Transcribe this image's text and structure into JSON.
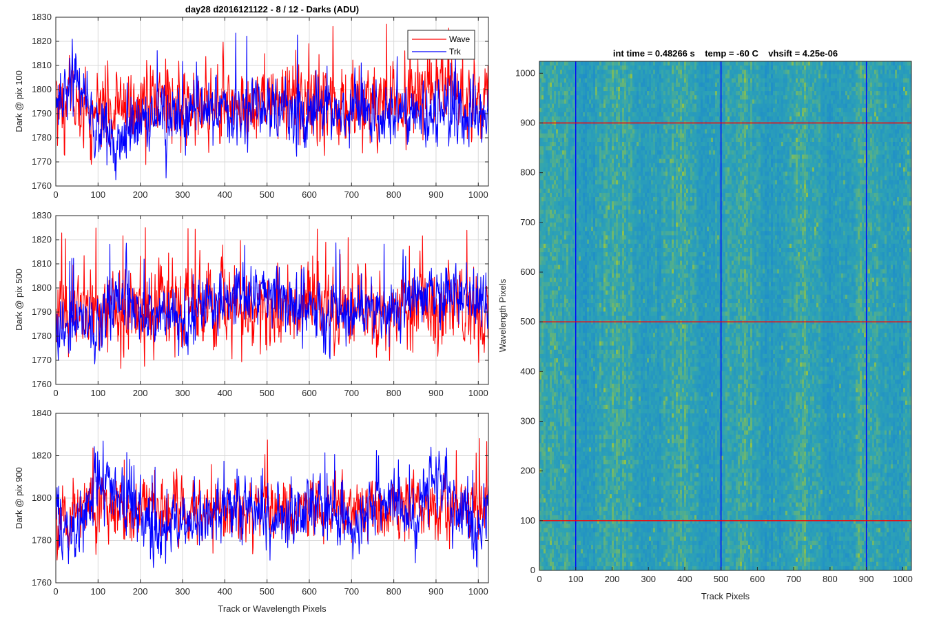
{
  "chart_data": [
    {
      "type": "line",
      "title": "day28 d2016121122 - 8 / 12 - Darks (ADU)",
      "xlabel": "",
      "ylabel": "Dark @ pix 100",
      "xlim": [
        0,
        1024
      ],
      "ylim": [
        1760,
        1830
      ],
      "xticks": [
        "0",
        "100",
        "200",
        "300",
        "400",
        "500",
        "600",
        "700",
        "800",
        "900",
        "1000"
      ],
      "yticks": [
        "1760",
        "1770",
        "1780",
        "1790",
        "1800",
        "1810",
        "1820",
        "1830"
      ],
      "grid": true,
      "legend": {
        "placement": "top-right",
        "entries": [
          "Wave",
          "Trk"
        ]
      },
      "series": [
        {
          "name": "Wave",
          "color": "#ff0000",
          "mean_profile": [
            [
              0,
              1796
            ],
            [
              100,
              1792
            ],
            [
              200,
              1792
            ],
            [
              300,
              1793
            ],
            [
              400,
              1794
            ],
            [
              500,
              1794
            ],
            [
              600,
              1795
            ],
            [
              700,
              1795
            ],
            [
              800,
              1796
            ],
            [
              900,
              1796
            ],
            [
              1024,
              1797
            ]
          ],
          "noise_sd": 8,
          "spike_max": 1828,
          "min": 1764
        },
        {
          "name": "Trk",
          "color": "#0000ff",
          "mean_profile": [
            [
              0,
              1795
            ],
            [
              40,
              1805
            ],
            [
              70,
              1797
            ],
            [
              100,
              1786
            ],
            [
              150,
              1778
            ],
            [
              200,
              1786
            ],
            [
              300,
              1790
            ],
            [
              400,
              1791
            ],
            [
              500,
              1792
            ],
            [
              600,
              1792
            ],
            [
              700,
              1791
            ],
            [
              800,
              1790
            ],
            [
              900,
              1791
            ],
            [
              1024,
              1790
            ]
          ],
          "noise_sd": 6,
          "max": 1824,
          "min": 1762
        }
      ]
    },
    {
      "type": "line",
      "title": "",
      "xlabel": "",
      "ylabel": "Dark @ pix 500",
      "xlim": [
        0,
        1024
      ],
      "ylim": [
        1760,
        1830
      ],
      "xticks": [
        "0",
        "100",
        "200",
        "300",
        "400",
        "500",
        "600",
        "700",
        "800",
        "900",
        "1000"
      ],
      "yticks": [
        "1760",
        "1770",
        "1780",
        "1790",
        "1800",
        "1810",
        "1820",
        "1830"
      ],
      "grid": true,
      "series": [
        {
          "name": "Wave",
          "color": "#ff0000",
          "mean_profile": [
            [
              0,
              1790
            ],
            [
              200,
              1790
            ],
            [
              400,
              1793
            ],
            [
              600,
              1792
            ],
            [
              800,
              1791
            ],
            [
              1024,
              1792
            ]
          ],
          "noise_sd": 8,
          "spike_max": 1825,
          "min": 1764
        },
        {
          "name": "Trk",
          "color": "#0000ff",
          "mean_profile": [
            [
              0,
              1782
            ],
            [
              100,
              1788
            ],
            [
              150,
              1797
            ],
            [
              200,
              1790
            ],
            [
              300,
              1787
            ],
            [
              400,
              1797
            ],
            [
              500,
              1797
            ],
            [
              600,
              1792
            ],
            [
              700,
              1787
            ],
            [
              800,
              1790
            ],
            [
              900,
              1800
            ],
            [
              1024,
              1795
            ]
          ],
          "noise_sd": 6,
          "max": 1819,
          "min": 1762
        }
      ]
    },
    {
      "type": "line",
      "title": "",
      "xlabel": "Track or Wavelength Pixels",
      "ylabel": "Dark @ pix 900",
      "xlim": [
        0,
        1024
      ],
      "ylim": [
        1760,
        1840
      ],
      "xticks": [
        "0",
        "100",
        "200",
        "300",
        "400",
        "500",
        "600",
        "700",
        "800",
        "900",
        "1000"
      ],
      "yticks": [
        "1760",
        "1780",
        "1800",
        "1820",
        "1840"
      ],
      "grid": true,
      "series": [
        {
          "name": "Wave",
          "color": "#ff0000",
          "mean_profile": [
            [
              0,
              1795
            ],
            [
              200,
              1793
            ],
            [
              400,
              1794
            ],
            [
              600,
              1795
            ],
            [
              800,
              1795
            ],
            [
              1024,
              1794
            ]
          ],
          "noise_sd": 7,
          "spike_max": 1837,
          "min": 1768
        },
        {
          "name": "Trk",
          "color": "#0000ff",
          "mean_profile": [
            [
              0,
              1795
            ],
            [
              50,
              1780
            ],
            [
              100,
              1808
            ],
            [
              150,
              1803
            ],
            [
              200,
              1788
            ],
            [
              300,
              1787
            ],
            [
              400,
              1795
            ],
            [
              450,
              1800
            ],
            [
              500,
              1790
            ],
            [
              600,
              1797
            ],
            [
              700,
              1786
            ],
            [
              800,
              1802
            ],
            [
              850,
              1790
            ],
            [
              900,
              1815
            ],
            [
              950,
              1795
            ],
            [
              1000,
              1785
            ],
            [
              1024,
              1800
            ]
          ],
          "noise_sd": 7,
          "max": 1828,
          "min": 1762
        }
      ]
    },
    {
      "type": "heatmap",
      "title": "int time = 0.48266 s    temp = -60 C    vhsift = 4.25e-06",
      "xlabel": "Track Pixels",
      "ylabel": "Wavelength Pixels",
      "xlim": [
        0,
        1024
      ],
      "ylim": [
        0,
        1024
      ],
      "xticks": [
        "0",
        "100",
        "200",
        "300",
        "400",
        "500",
        "600",
        "700",
        "800",
        "900",
        "1000"
      ],
      "yticks": [
        "0",
        "100",
        "200",
        "300",
        "400",
        "500",
        "600",
        "700",
        "800",
        "900",
        "1000"
      ],
      "colormap": {
        "low": "#1f8fc8",
        "mid": "#2ea3b4",
        "high": "#8ec24a"
      },
      "vertical_markers": {
        "x": [
          100,
          500,
          900
        ],
        "color": "#0000ff"
      },
      "horizontal_markers": {
        "y": [
          100,
          500,
          900
        ],
        "color": "#ff0000"
      }
    }
  ]
}
